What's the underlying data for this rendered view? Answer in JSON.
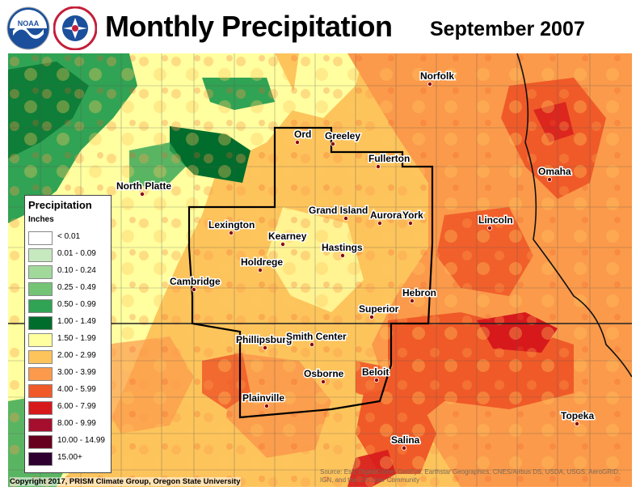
{
  "header": {
    "title": "Monthly Precipitation",
    "date": "September 2007",
    "logos": [
      "noaa-logo",
      "national-weather-service-logo"
    ]
  },
  "legend": {
    "title": "Precipitation",
    "units": "Inches",
    "items": [
      {
        "label": "< 0.01",
        "color": "#ffffff"
      },
      {
        "label": "0.01 - 0.09",
        "color": "#c7e9c0"
      },
      {
        "label": "0.10 - 0.24",
        "color": "#a1d99b"
      },
      {
        "label": "0.25 - 0.49",
        "color": "#74c476"
      },
      {
        "label": "0.50 - 0.99",
        "color": "#31a354"
      },
      {
        "label": "1.00 - 1.49",
        "color": "#006d2c"
      },
      {
        "label": "1.50 - 1.99",
        "color": "#ffffa0"
      },
      {
        "label": "2.00 - 2.99",
        "color": "#fdc45c"
      },
      {
        "label": "3.00 - 3.99",
        "color": "#fb9a4b"
      },
      {
        "label": "4.00 - 5.99",
        "color": "#f05a28"
      },
      {
        "label": "6.00 - 7.99",
        "color": "#d7191c"
      },
      {
        "label": "8.00 - 9.99",
        "color": "#a50f2d"
      },
      {
        "label": "10.00 - 14.99",
        "color": "#67001f"
      },
      {
        "label": "15.00+",
        "color": "#2d0030"
      }
    ]
  },
  "cities": [
    {
      "name": "Norfolk"
    },
    {
      "name": "Ord"
    },
    {
      "name": "Greeley"
    },
    {
      "name": "Fullerton"
    },
    {
      "name": "Omaha"
    },
    {
      "name": "North Platte"
    },
    {
      "name": "Grand Island"
    },
    {
      "name": "Aurora"
    },
    {
      "name": "York"
    },
    {
      "name": "Lincoln"
    },
    {
      "name": "Lexington"
    },
    {
      "name": "Kearney"
    },
    {
      "name": "Hastings"
    },
    {
      "name": "Holdrege"
    },
    {
      "name": "Cambridge"
    },
    {
      "name": "Hebron"
    },
    {
      "name": "Superior"
    },
    {
      "name": "Phillipsburg"
    },
    {
      "name": "Smith Center"
    },
    {
      "name": "Osborne"
    },
    {
      "name": "Beloit"
    },
    {
      "name": "Plainville"
    },
    {
      "name": "Topeka"
    },
    {
      "name": "Salina"
    }
  ],
  "footer": {
    "copyright": "Copyright 2017, PRISM Climate Group, Oregon State University",
    "sources": "Source: Esri, DigitalGlobe, GeoEye, Earthstar Geographics, CNES/Airbus DS, USDA, USGS, AeroGRID, IGN, and the GIS User Community"
  }
}
